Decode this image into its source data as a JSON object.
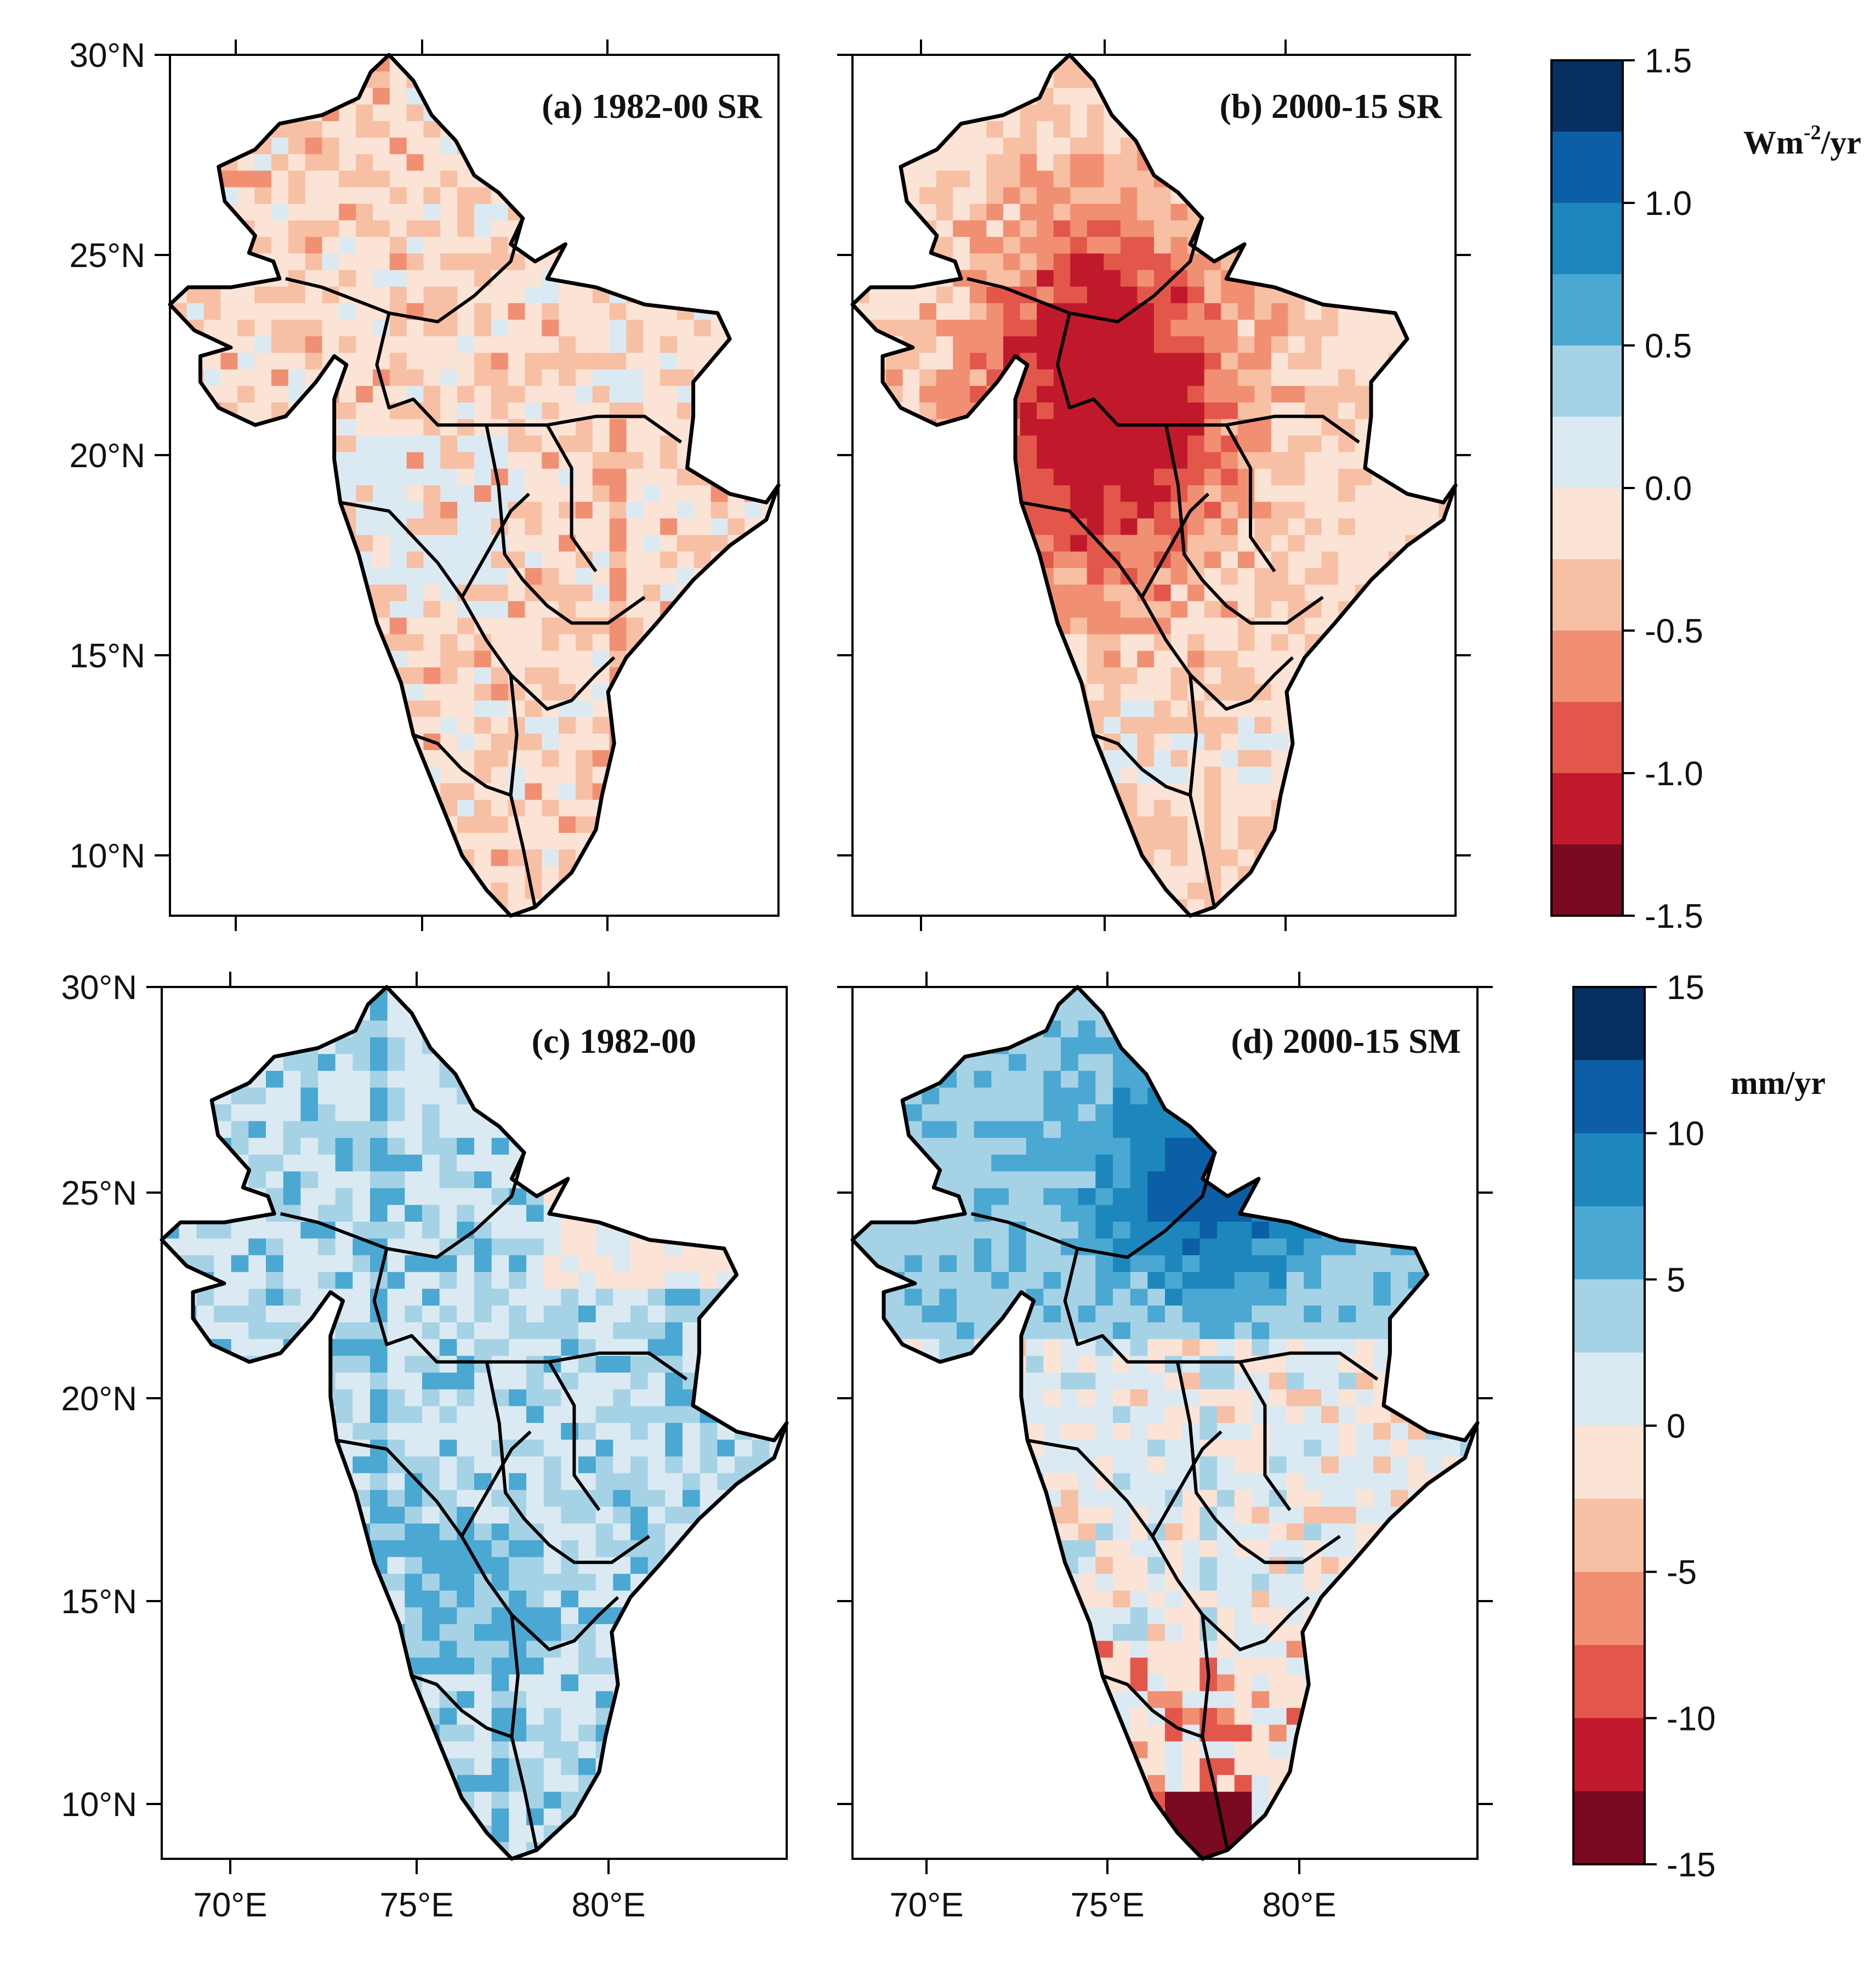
{
  "figure": {
    "lat_labels": [
      "30°N",
      "25°N",
      "20°N",
      "15°N",
      "10°N"
    ],
    "lon_labels": [
      "70°E",
      "75°E",
      "80°E"
    ]
  },
  "panels": [
    {
      "id": "a",
      "title": "(a) 1982-00 SR",
      "variable": "SR",
      "theme": "weak-negative"
    },
    {
      "id": "b",
      "title": "(b) 2000-15 SR",
      "variable": "SR",
      "theme": "strong-negative"
    },
    {
      "id": "c",
      "title": "(c) 1982-00",
      "variable": "SM",
      "theme": "weak-positive"
    },
    {
      "id": "d",
      "title": "(d) 2000-15 SM",
      "variable": "SM",
      "theme": "mixed"
    }
  ],
  "colorbars": [
    {
      "id": "sr",
      "unit_main": "Wm",
      "unit_sup": "-2",
      "unit_tail": "/yr",
      "labels": [
        "1.5",
        "1.0",
        "0.5",
        "0.0",
        "-0.5",
        "-1.0",
        "-1.5"
      ]
    },
    {
      "id": "sm",
      "unit_main": "mm/yr",
      "unit_sup": "",
      "unit_tail": "",
      "labels": [
        "15",
        "10",
        "5",
        "0",
        "-5",
        "-10",
        "-15"
      ]
    }
  ],
  "palette": [
    "#053061",
    "#0c5ea6",
    "#1d87bd",
    "#4aa8d2",
    "#a6d2e6",
    "#dbeaf2",
    "#fbe3d6",
    "#f7bfa4",
    "#f18f73",
    "#e3574b",
    "#c1192c",
    "#7a0a22"
  ],
  "border_color": "#000000"
}
